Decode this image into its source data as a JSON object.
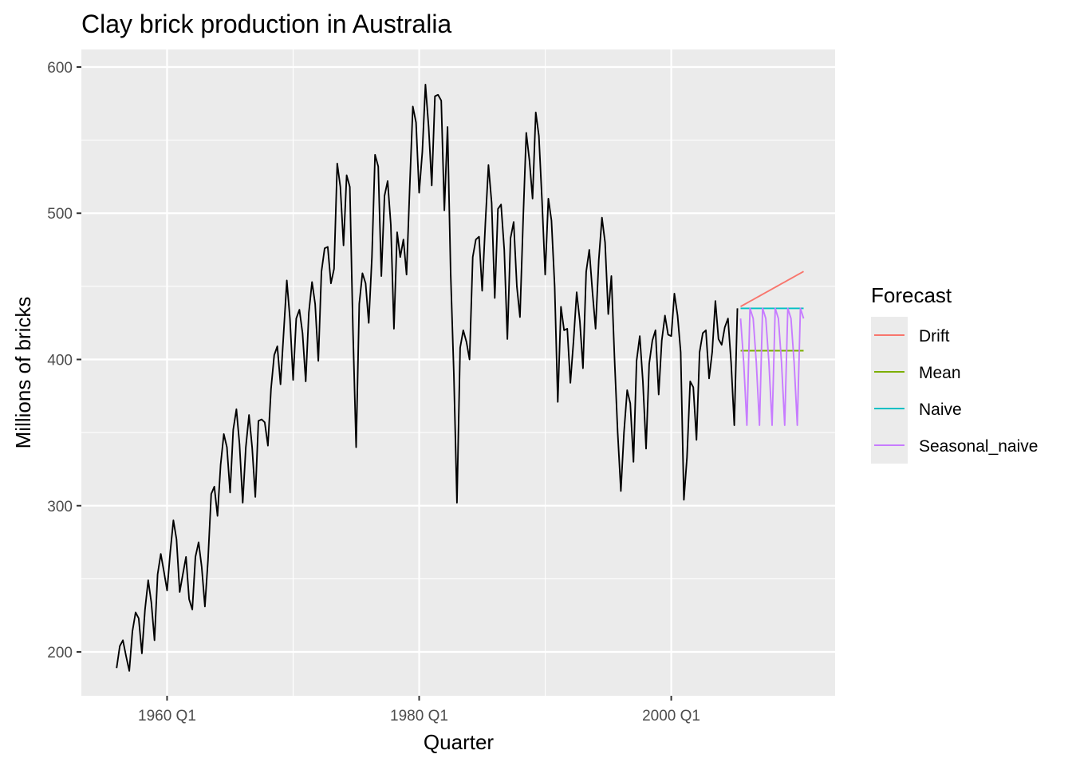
{
  "chart_data": {
    "type": "line",
    "title": "Clay brick production in Australia",
    "xlabel": "Quarter",
    "ylabel": "Millions of bricks",
    "xlim": [
      1953.2,
      2013.0
    ],
    "ylim": [
      170,
      612
    ],
    "x_ticks": [
      {
        "value": 1960.0,
        "label": "1960 Q1"
      },
      {
        "value": 1980.0,
        "label": "1980 Q1"
      },
      {
        "value": 2000.0,
        "label": "2000 Q1"
      }
    ],
    "y_ticks": [
      200,
      300,
      400,
      500,
      600
    ],
    "grid": true,
    "legend": {
      "title": "Forecast",
      "position": "right",
      "entries": [
        {
          "name": "Drift",
          "color": "#F8766D"
        },
        {
          "name": "Mean",
          "color": "#7CAE00"
        },
        {
          "name": "Naive",
          "color": "#00BFC4"
        },
        {
          "name": "Seasonal_naive",
          "color": "#C77CFF"
        }
      ]
    },
    "history": {
      "color": "#000000",
      "start": 1956.0,
      "step": 0.25,
      "values": [
        189,
        204,
        208,
        197,
        187,
        214,
        227,
        223,
        199,
        229,
        249,
        234,
        208,
        253,
        267,
        255,
        242,
        268,
        290,
        277,
        241,
        253,
        265,
        236,
        229,
        265,
        275,
        258,
        231,
        263,
        308,
        313,
        293,
        328,
        349,
        340,
        309,
        352,
        366,
        342,
        302,
        340,
        362,
        340,
        306,
        358,
        359,
        357,
        341,
        380,
        403,
        409,
        383,
        418,
        454,
        428,
        386,
        428,
        434,
        418,
        385,
        432,
        453,
        438,
        399,
        460,
        476,
        477,
        452,
        462,
        534,
        518,
        478,
        526,
        518,
        420,
        340,
        438,
        459,
        452,
        425,
        470,
        540,
        532,
        457,
        512,
        522,
        492,
        421,
        487,
        470,
        482,
        458,
        518,
        573,
        562,
        514,
        542,
        588,
        559,
        519,
        580,
        581,
        577,
        502,
        559,
        459,
        390,
        302,
        408,
        420,
        412,
        400,
        470,
        482,
        484,
        447,
        493,
        533,
        507,
        442,
        503,
        506,
        475,
        414,
        483,
        494,
        450,
        429,
        496,
        555,
        536,
        510,
        569,
        553,
        508,
        458,
        510,
        495,
        450,
        371,
        436,
        420,
        421,
        384,
        413,
        446,
        426,
        394,
        460,
        475,
        446,
        421,
        468,
        497,
        480,
        431,
        457,
        400,
        350,
        310,
        350,
        379,
        370,
        330,
        399,
        416,
        385,
        339,
        397,
        413,
        420,
        376,
        413,
        430,
        417,
        416,
        445,
        430,
        405,
        304,
        333,
        385,
        381,
        345,
        405,
        418,
        420,
        387,
        405,
        440,
        414,
        410,
        422,
        428,
        398,
        355,
        435
      ]
    },
    "forecasts": [
      {
        "name": "Drift",
        "color": "#F8766D",
        "start": 2005.5,
        "step": 0.25,
        "values": [
          436.2,
          437.4,
          438.6,
          439.8,
          441.0,
          442.2,
          443.4,
          444.6,
          445.8,
          447.0,
          448.2,
          449.4,
          450.6,
          451.8,
          453.0,
          454.2,
          455.4,
          456.6,
          457.8,
          459.0,
          460.2
        ]
      },
      {
        "name": "Mean",
        "color": "#7CAE00",
        "start": 2005.5,
        "step": 0.25,
        "values": [
          406,
          406,
          406,
          406,
          406,
          406,
          406,
          406,
          406,
          406,
          406,
          406,
          406,
          406,
          406,
          406,
          406,
          406,
          406,
          406,
          406
        ]
      },
      {
        "name": "Naive",
        "color": "#00BFC4",
        "start": 2005.5,
        "step": 0.25,
        "values": [
          435,
          435,
          435,
          435,
          435,
          435,
          435,
          435,
          435,
          435,
          435,
          435,
          435,
          435,
          435,
          435,
          435,
          435,
          435,
          435,
          435
        ]
      },
      {
        "name": "Seasonal_naive",
        "color": "#C77CFF",
        "start": 2005.5,
        "step": 0.25,
        "values": [
          428,
          398,
          355,
          435,
          428,
          398,
          355,
          435,
          428,
          398,
          355,
          435,
          428,
          398,
          355,
          435,
          428,
          398,
          355,
          435,
          428
        ]
      }
    ]
  }
}
